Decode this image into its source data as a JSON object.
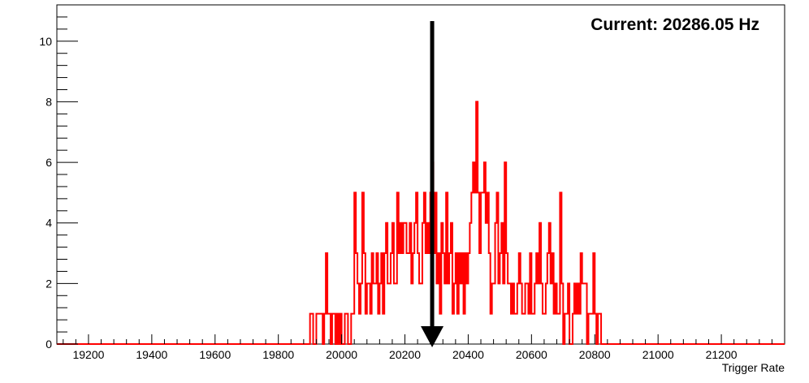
{
  "chart_data": {
    "type": "histogram",
    "title": "",
    "xlabel": "Trigger Rate",
    "ylabel": "",
    "xlim": [
      19100,
      21400
    ],
    "ylim": [
      0,
      11.2
    ],
    "grid": false,
    "legend": "none",
    "x_ticks": [
      19200,
      19400,
      19600,
      19800,
      20000,
      20200,
      20400,
      20600,
      20800,
      21000,
      21200
    ],
    "x_tick_labels": [
      "19200",
      "19400",
      "19600",
      "19800",
      "20000",
      "20200",
      "20400",
      "20600",
      "20800",
      "21000",
      "21200"
    ],
    "y_ticks": [
      0,
      2,
      4,
      6,
      8,
      10
    ],
    "y_tick_labels": [
      "0",
      "2",
      "4",
      "6",
      "8",
      "10"
    ],
    "bin_width": 5,
    "bin_start": 19900,
    "counts": [
      1,
      1,
      0,
      0,
      1,
      1,
      1,
      1,
      0,
      1,
      3,
      1,
      1,
      0,
      1,
      1,
      0,
      1,
      0,
      1,
      0,
      0,
      1,
      1,
      0,
      0,
      1,
      1,
      5,
      3,
      2,
      1,
      2,
      5,
      3,
      1,
      2,
      2,
      1,
      3,
      2,
      2,
      3,
      1,
      2,
      3,
      1,
      3,
      4,
      2,
      2,
      3,
      4,
      2,
      2,
      5,
      3,
      4,
      3,
      4,
      4,
      3,
      3,
      4,
      2,
      3,
      4,
      5,
      3,
      2,
      2,
      4,
      5,
      3,
      4,
      3,
      5,
      6,
      3,
      5,
      2,
      3,
      1,
      4,
      3,
      2,
      5,
      2,
      3,
      4,
      1,
      2,
      3,
      1,
      3,
      2,
      3,
      1,
      3,
      2,
      3,
      4,
      5,
      6,
      5,
      8,
      5,
      3,
      5,
      5,
      6,
      4,
      5,
      3,
      1,
      2,
      2,
      4,
      5,
      2,
      3,
      4,
      2,
      6,
      3,
      2,
      2,
      1,
      2,
      1,
      1,
      2,
      3,
      2,
      1,
      1,
      2,
      2,
      1,
      3,
      1,
      1,
      2,
      3,
      2,
      4,
      2,
      1,
      1,
      2,
      3,
      4,
      2,
      3,
      1,
      2,
      1,
      1,
      5,
      2,
      0,
      1,
      1,
      2,
      0,
      0,
      1,
      2,
      1,
      2,
      1,
      3,
      2,
      2,
      2,
      0,
      1,
      1,
      1,
      3,
      1,
      0,
      1,
      1,
      0
    ],
    "color": "#ff0000",
    "annotation": {
      "text": "Current: 20286.05 Hz",
      "arrow_x": 20286.05,
      "arrow_color": "#000000"
    }
  }
}
